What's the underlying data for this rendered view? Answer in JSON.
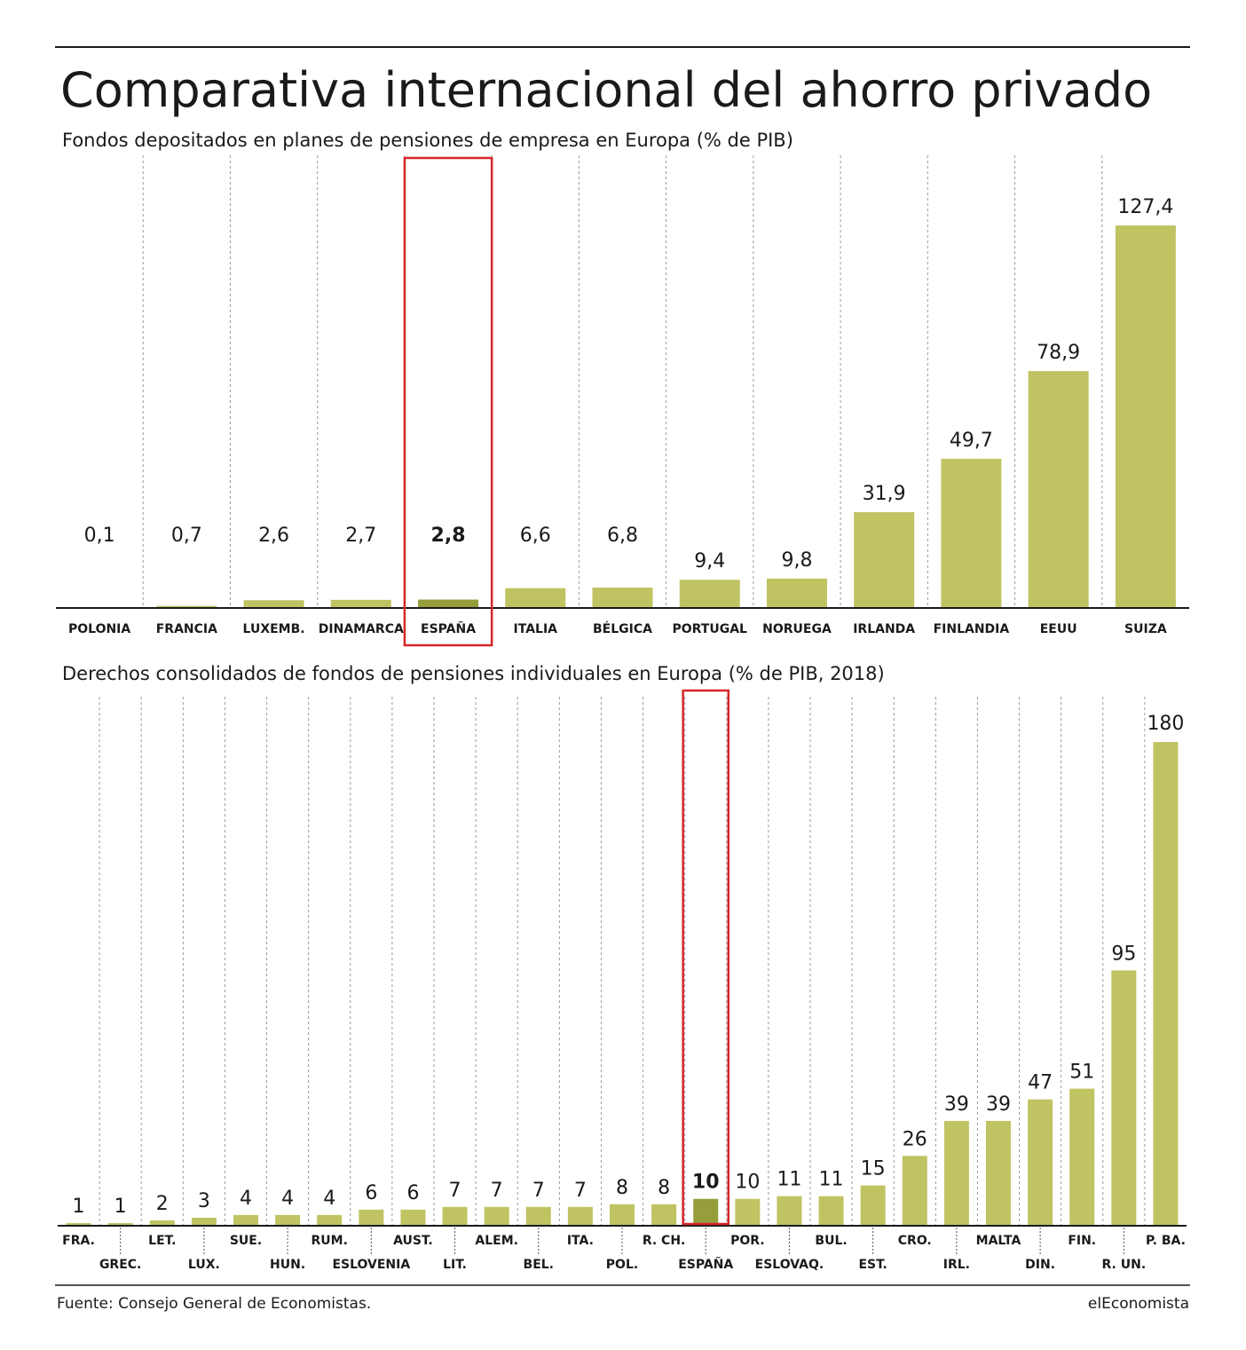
{
  "header": {
    "title": "Comparativa internacional del ahorro privado"
  },
  "footer": {
    "source": "Fuente: Consejo General de Economistas.",
    "brand": "elEconomista"
  },
  "colors": {
    "bar": "#c0c362",
    "bar_highlight": "#959e3a",
    "highlight_box": "#d7262a",
    "grid": "#9a9a9a",
    "axis": "#1a1a1a"
  },
  "chart_data": [
    {
      "type": "bar",
      "title": "Fondos depositados en planes de pensiones de empresa en Europa (% de PIB)",
      "categories": [
        "POLONIA",
        "FRANCIA",
        "LUXEMB.",
        "DINAMARCA",
        "ESPAÑA",
        "ITALIA",
        "BÉLGICA",
        "PORTUGAL",
        "NORUEGA",
        "IRLANDA",
        "FINLANDIA",
        "EEUU",
        "SUIZA"
      ],
      "values": [
        0.1,
        0.7,
        2.6,
        2.7,
        2.8,
        6.6,
        6.8,
        9.4,
        9.8,
        31.9,
        49.7,
        78.9,
        127.4
      ],
      "value_labels": [
        "0,1",
        "0,7",
        "2,6",
        "2,7",
        "2,8",
        "6,6",
        "6,8",
        "9,4",
        "9,8",
        "31,9",
        "49,7",
        "78,9",
        "127,4"
      ],
      "highlight": "ESPAÑA",
      "ylim": [
        0,
        140
      ],
      "xlabel": "",
      "ylabel": "",
      "grid": true,
      "legend": "none"
    },
    {
      "type": "bar",
      "title": "Derechos consolidados de fondos de pensiones individuales en Europa (% de PIB, 2018)",
      "categories": [
        "FRA.",
        "GREC.",
        "LET.",
        "LUX.",
        "SUE.",
        "HUN.",
        "RUM.",
        "ESLOVENIA",
        "AUST.",
        "LIT.",
        "ALEM.",
        "BEL.",
        "ITA.",
        "POL.",
        "R. CH.",
        "ESPAÑA",
        "POR.",
        "ESLOVAQ.",
        "BUL.",
        "EST.",
        "CRO.",
        "IRL.",
        "MALTA",
        "DIN.",
        "FIN.",
        "R. UN.",
        "P. BA."
      ],
      "values": [
        1,
        1,
        2,
        3,
        4,
        4,
        4,
        6,
        6,
        7,
        7,
        7,
        7,
        8,
        8,
        10,
        10,
        11,
        11,
        15,
        26,
        39,
        39,
        47,
        51,
        95,
        180
      ],
      "value_labels": [
        "1",
        "1",
        "2",
        "3",
        "4",
        "4",
        "4",
        "6",
        "6",
        "7",
        "7",
        "7",
        "7",
        "8",
        "8",
        "10",
        "10",
        "11",
        "11",
        "15",
        "26",
        "39",
        "39",
        "47",
        "51",
        "95",
        ""
      ],
      "top_label": "180",
      "highlight": "ESPAÑA",
      "ylim": [
        0,
        180
      ],
      "xlabel": "",
      "ylabel": "",
      "grid": true,
      "legend": "none"
    }
  ]
}
